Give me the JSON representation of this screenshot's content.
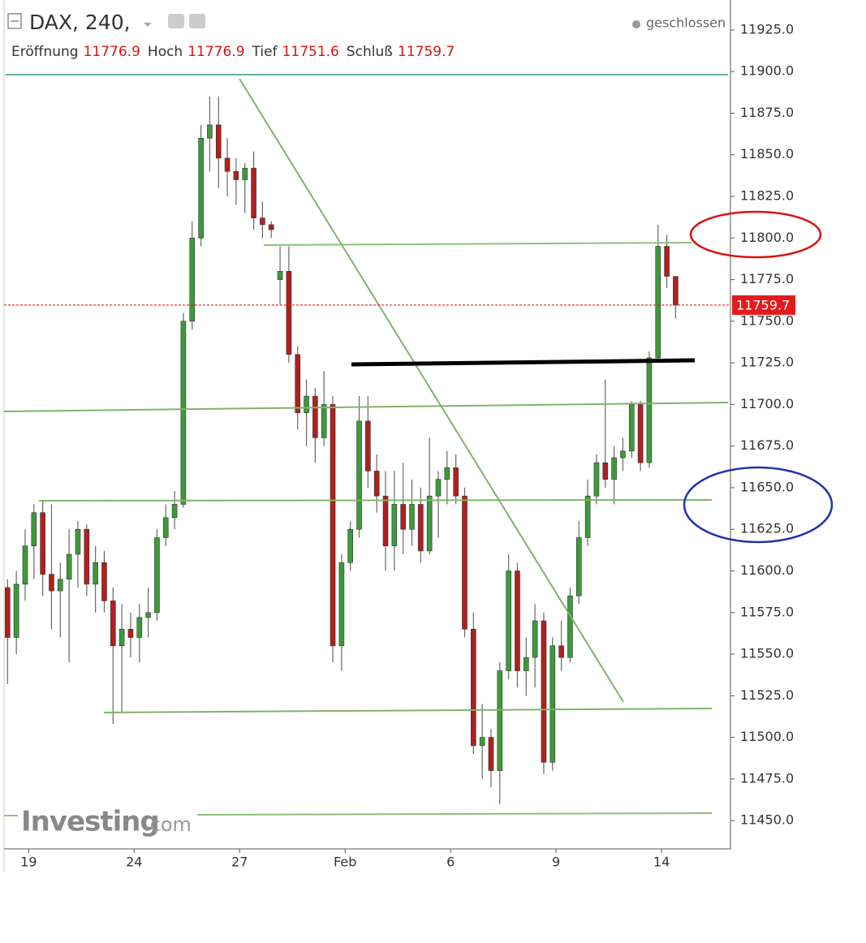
{
  "chart_data": {
    "type": "candlestick",
    "title": "DAX, 240,",
    "status": "geschlossen",
    "header": [
      {
        "label": "Eröffnung",
        "value": 11776.9
      },
      {
        "label": "Hoch",
        "value": 11776.9
      },
      {
        "label": "Tief",
        "value": 11751.6
      },
      {
        "label": "Schluß",
        "value": 11759.7
      }
    ],
    "watermark_main": "Investing",
    "watermark_suffix": ".com",
    "up_color": "#3c9a3a",
    "down_color": "#b0201e",
    "last_price": 11759.7,
    "last_price_color": "#e31b1b",
    "xlim": [
      -0.7,
      19.96
    ],
    "ylim": [
      11433,
      11943
    ],
    "xticks": [
      {
        "value": 0,
        "label": "19"
      },
      {
        "value": 3,
        "label": "24"
      },
      {
        "value": 6,
        "label": "27"
      },
      {
        "value": 9,
        "label": "Feb"
      },
      {
        "value": 12,
        "label": "6"
      },
      {
        "value": 15,
        "label": "9"
      },
      {
        "value": 18,
        "label": "14"
      }
    ],
    "yticks": [
      {
        "value": 11450,
        "label": "11450.0"
      },
      {
        "value": 11475,
        "label": "11475.0"
      },
      {
        "value": 11500,
        "label": "11500.0"
      },
      {
        "value": 11525,
        "label": "11525.0"
      },
      {
        "value": 11550,
        "label": "11550.0"
      },
      {
        "value": 11575,
        "label": "11575.0"
      },
      {
        "value": 11600,
        "label": "11600.0"
      },
      {
        "value": 11625,
        "label": "11625.0"
      },
      {
        "value": 11650,
        "label": "11650.0"
      },
      {
        "value": 11675,
        "label": "11675.0"
      },
      {
        "value": 11700,
        "label": "11700.0"
      },
      {
        "value": 11725,
        "label": "11725.0"
      },
      {
        "value": 11750,
        "label": "11750.0"
      },
      {
        "value": 11775,
        "label": "11775.0"
      },
      {
        "value": 11800,
        "label": "11800.0"
      },
      {
        "value": 11825,
        "label": "11825.0"
      },
      {
        "value": 11850,
        "label": "11850.0"
      },
      {
        "value": 11875,
        "label": "11875.0"
      },
      {
        "value": 11900,
        "label": "11900.0"
      },
      {
        "value": 11925,
        "label": "11925.0"
      }
    ],
    "x": [
      -0.6,
      -0.35,
      -0.1,
      0.15,
      0.4,
      0.65,
      0.9,
      1.15,
      1.4,
      1.65,
      1.9,
      2.15,
      2.4,
      2.65,
      2.9,
      3.15,
      3.4,
      3.65,
      3.9,
      4.15,
      4.4,
      4.65,
      4.9,
      5.15,
      5.4,
      5.65,
      5.9,
      6.15,
      6.4,
      6.65,
      6.9,
      7.15,
      7.4,
      7.65,
      7.9,
      8.15,
      8.4,
      8.65,
      8.9,
      9.15,
      9.4,
      9.65,
      9.9,
      10.15,
      10.4,
      10.65,
      10.9,
      11.15,
      11.4,
      11.65,
      11.9,
      12.15,
      12.4,
      12.65,
      12.9,
      13.15,
      13.4,
      13.65,
      13.9,
      14.15,
      14.4,
      14.65,
      14.9,
      15.15,
      15.4,
      15.65,
      15.9,
      16.15,
      16.4,
      16.65,
      16.9,
      17.15,
      17.4,
      17.65,
      17.9,
      18.15,
      18.4
    ],
    "open": [
      11590,
      11560,
      11592,
      11615,
      11635,
      11598,
      11588,
      11595,
      11610,
      11625,
      11592,
      11605,
      11582,
      11555,
      11565,
      11560,
      11572,
      11575,
      11620,
      11632,
      11640,
      11750,
      11800,
      11860,
      11868,
      11848,
      11840,
      11835,
      11842,
      11812,
      11808,
      11775,
      11780,
      11730,
      11695,
      11705,
      11680,
      11700,
      11555,
      11605,
      11625,
      11690,
      11660,
      11645,
      11615,
      11640,
      11625,
      11640,
      11612,
      11645,
      11655,
      11662,
      11645,
      11565,
      11495,
      11500,
      11480,
      11540,
      11600,
      11540,
      11548,
      11570,
      11485,
      11555,
      11548,
      11585,
      11620,
      11645,
      11665,
      11655,
      11668,
      11672,
      11700,
      11665,
      11728,
      11795,
      11776.9
    ],
    "high": [
      11595,
      11600,
      11625,
      11640,
      11642,
      11640,
      11605,
      11625,
      11630,
      11628,
      11615,
      11612,
      11590,
      11580,
      11575,
      11580,
      11590,
      11625,
      11640,
      11648,
      11755,
      11810,
      11868,
      11885,
      11885,
      11860,
      11848,
      11845,
      11852,
      11822,
      11810,
      11795,
      11795,
      11735,
      11715,
      11710,
      11720,
      11705,
      11610,
      11630,
      11705,
      11705,
      11670,
      11660,
      11660,
      11665,
      11655,
      11650,
      11680,
      11660,
      11672,
      11670,
      11650,
      11575,
      11520,
      11505,
      11545,
      11610,
      11605,
      11560,
      11580,
      11575,
      11560,
      11570,
      11590,
      11630,
      11655,
      11670,
      11715,
      11675,
      11680,
      11702,
      11702,
      11732,
      11808,
      11802,
      11776.9
    ],
    "low": [
      11532,
      11550,
      11582,
      11595,
      11585,
      11565,
      11560,
      11545,
      11590,
      11585,
      11575,
      11575,
      11508,
      11515,
      11548,
      11545,
      11560,
      11570,
      11615,
      11625,
      11638,
      11745,
      11795,
      11840,
      11830,
      11825,
      11820,
      11815,
      11805,
      11800,
      11800,
      11760,
      11725,
      11685,
      11675,
      11665,
      11675,
      11545,
      11540,
      11600,
      11620,
      11650,
      11635,
      11600,
      11600,
      11610,
      11615,
      11605,
      11610,
      11620,
      11640,
      11640,
      11560,
      11490,
      11475,
      11470,
      11460,
      11535,
      11530,
      11525,
      11530,
      11478,
      11480,
      11540,
      11545,
      11580,
      11615,
      11640,
      11650,
      11640,
      11660,
      11668,
      11660,
      11662,
      11725,
      11770,
      11751.6
    ],
    "close": [
      11560,
      11592,
      11615,
      11635,
      11598,
      11588,
      11595,
      11610,
      11625,
      11592,
      11605,
      11582,
      11555,
      11565,
      11560,
      11572,
      11575,
      11620,
      11632,
      11640,
      11750,
      11800,
      11860,
      11868,
      11848,
      11840,
      11835,
      11842,
      11812,
      11808,
      11805,
      11780,
      11730,
      11695,
      11705,
      11680,
      11700,
      11555,
      11605,
      11625,
      11690,
      11660,
      11645,
      11615,
      11640,
      11625,
      11640,
      11612,
      11645,
      11655,
      11662,
      11645,
      11565,
      11495,
      11500,
      11480,
      11540,
      11600,
      11540,
      11548,
      11570,
      11485,
      11555,
      11548,
      11585,
      11620,
      11645,
      11665,
      11655,
      11668,
      11672,
      11700,
      11665,
      11728,
      11795,
      11777,
      11759.7
    ]
  }
}
